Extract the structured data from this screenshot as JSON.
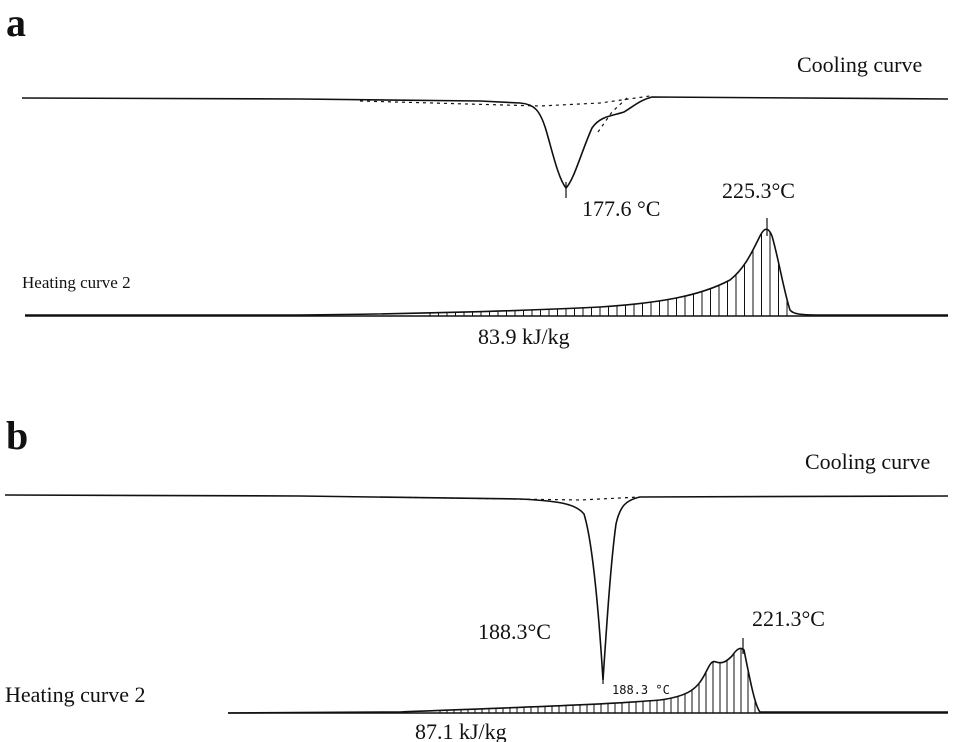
{
  "chart_data": [
    {
      "panel": "a",
      "type": "line",
      "cooling_label": "Cooling curve",
      "heating_label": "Heating curve 2",
      "cooling_peak_label": "177.6 °C",
      "heating_peak_label": "225.3°C",
      "enthalpy_label": "83.9 kJ/kg",
      "cooling_peak_temp": 177.6,
      "heating_peak_temp": 225.3,
      "enthalpy": 83.9
    },
    {
      "panel": "b",
      "type": "line",
      "cooling_label": "Cooling curve",
      "heating_label": "Heating curve 2",
      "cooling_peak_label": "188.3°C",
      "heating_peak_label": "221.3°C",
      "enthalpy_label": "87.1 kJ/kg",
      "onset_label": "188.3 °C",
      "cooling_peak_temp": 188.3,
      "heating_peak_temp": 221.3,
      "enthalpy": 87.1
    }
  ]
}
